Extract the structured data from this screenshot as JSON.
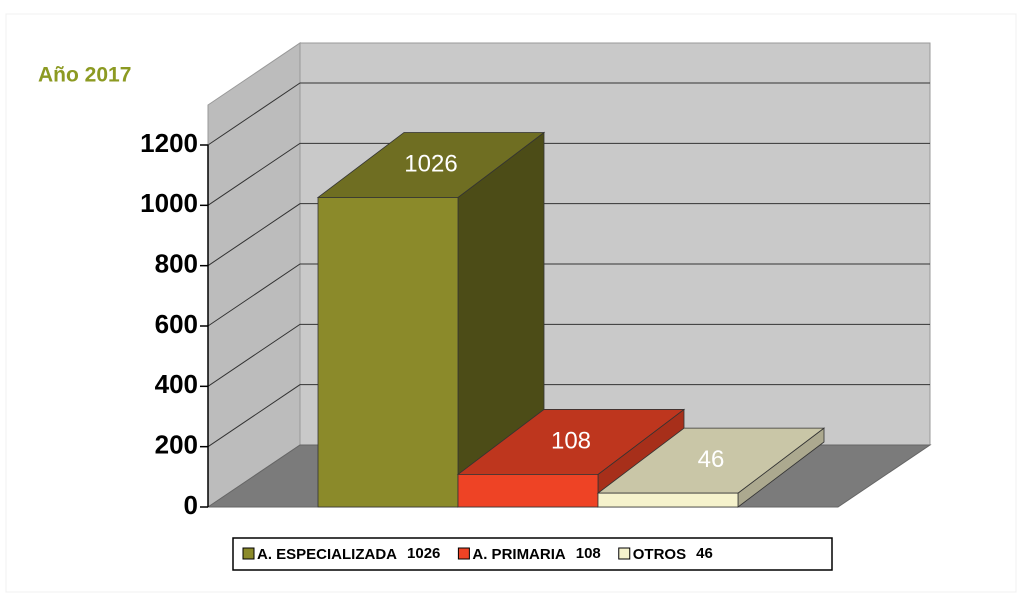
{
  "chart_data": {
    "type": "bar3d",
    "title": "Año 2017",
    "categories": [
      "A. ESPECIALIZADA",
      "A. PRIMARIA",
      "OTROS"
    ],
    "values": [
      1026,
      108,
      46
    ],
    "colors": [
      "#8b8a2a",
      "#ee4325",
      "#f5f2cc"
    ],
    "ylim": [
      0,
      1200
    ],
    "yticks": [
      0,
      200,
      400,
      600,
      800,
      1000,
      1200
    ],
    "grid": true
  }
}
